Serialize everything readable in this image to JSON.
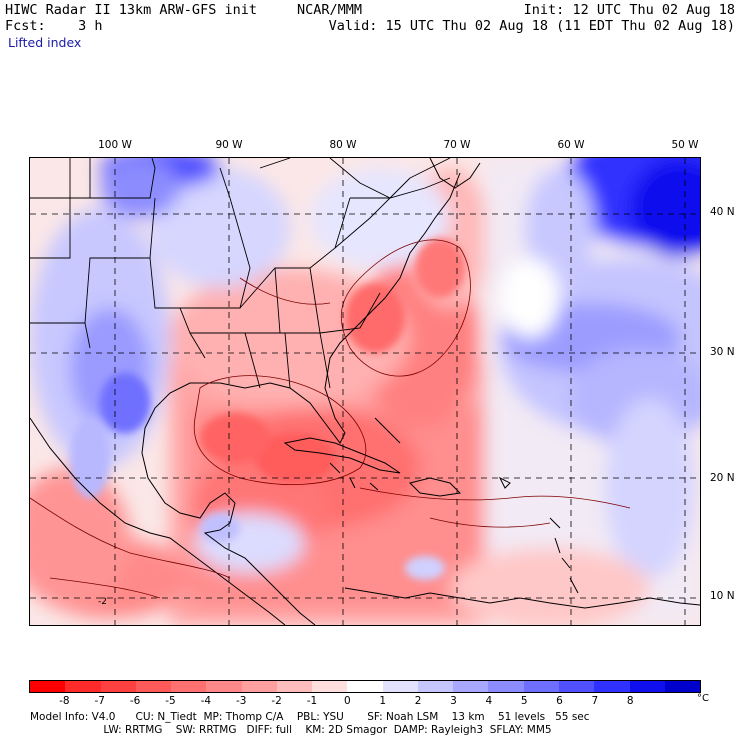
{
  "header": {
    "line1_left": "HIWC Radar II 13km ARW-GFS init",
    "line1_mid": "NCAR/MMM",
    "line1_right": "Init: 12 UTC Thu 02 Aug 18",
    "line2_left": "Fcst:    3 h",
    "line2_right": "Valid: 15 UTC Thu 02 Aug 18 (11 EDT Thu 02 Aug 18)"
  },
  "field_name": "Lifted index",
  "map": {
    "longitudes": [
      "100 W",
      "90 W",
      "80 W",
      "70 W",
      "60 W",
      "50 W"
    ],
    "latitudes": [
      "40 N",
      "30 N",
      "20 N",
      "10 N"
    ],
    "contour_label": "-2"
  },
  "colorbar": {
    "ticks": [
      "-8",
      "-7",
      "-6",
      "-5",
      "-4",
      "-3",
      "-2",
      "-1",
      "0",
      "1",
      "2",
      "3",
      "4",
      "5",
      "6",
      "7",
      "8"
    ],
    "unit": "°C",
    "colors": [
      "#ff0000",
      "#ff2a2a",
      "#ff4040",
      "#ff5a5a",
      "#ff7070",
      "#ff8888",
      "#ffa0a0",
      "#ffbcbc",
      "#ffdede",
      "#ffffff",
      "#e2e2ff",
      "#c6c6ff",
      "#a8a8ff",
      "#8c8cff",
      "#6e6eff",
      "#5050ff",
      "#3030ff",
      "#1010ee",
      "#0000cc"
    ]
  },
  "footer": {
    "line1": "Model Info: V4.0      CU: N_Tiedt  MP: Thomp C/A    PBL: YSU       SF: Noah LSM    13 km    51 levels   55 sec",
    "line2": "                      LW: RRTMG    SW: RRTMG   DIFF: full    KM: 2D Smagor  DAMP: Rayleigh3  SFLAY: MM5"
  }
}
